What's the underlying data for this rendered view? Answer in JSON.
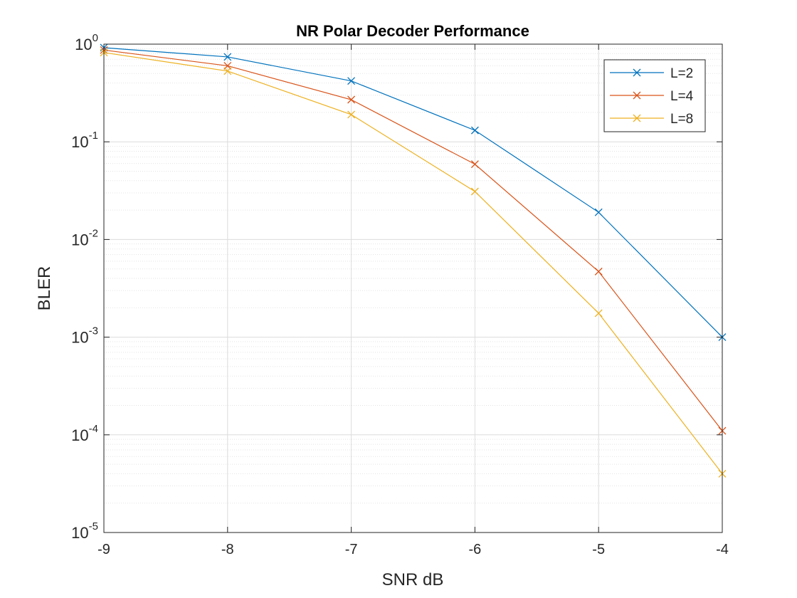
{
  "chart_data": {
    "type": "line",
    "title": "NR Polar Decoder Performance",
    "xlabel": "SNR dB",
    "ylabel": "BLER",
    "xlim": [
      -9,
      -4
    ],
    "ylim": [
      1e-05,
      1
    ],
    "yscale": "log",
    "grid": true,
    "minor_grid": true,
    "legend_placement": "top-right",
    "x": [
      -9,
      -8,
      -7,
      -6,
      -5,
      -4
    ],
    "xticks": [
      "-9",
      "-8",
      "-7",
      "-6",
      "-5",
      "-4"
    ],
    "yticks": [
      {
        "base": "10",
        "exp": "0"
      },
      {
        "base": "10",
        "exp": "-1"
      },
      {
        "base": "10",
        "exp": "-2"
      },
      {
        "base": "10",
        "exp": "-3"
      },
      {
        "base": "10",
        "exp": "-4"
      },
      {
        "base": "10",
        "exp": "-5"
      }
    ],
    "series": [
      {
        "name": "L=2",
        "color": "#0072BD",
        "marker": "x",
        "values": [
          0.92,
          0.74,
          0.42,
          0.131,
          0.019,
          0.001
        ]
      },
      {
        "name": "L=4",
        "color": "#D95319",
        "marker": "x",
        "values": [
          0.87,
          0.6,
          0.27,
          0.059,
          0.0047,
          0.00011
        ]
      },
      {
        "name": "L=8",
        "color": "#EDB120",
        "marker": "x",
        "values": [
          0.82,
          0.53,
          0.19,
          0.031,
          0.00176,
          4e-05
        ]
      }
    ]
  }
}
